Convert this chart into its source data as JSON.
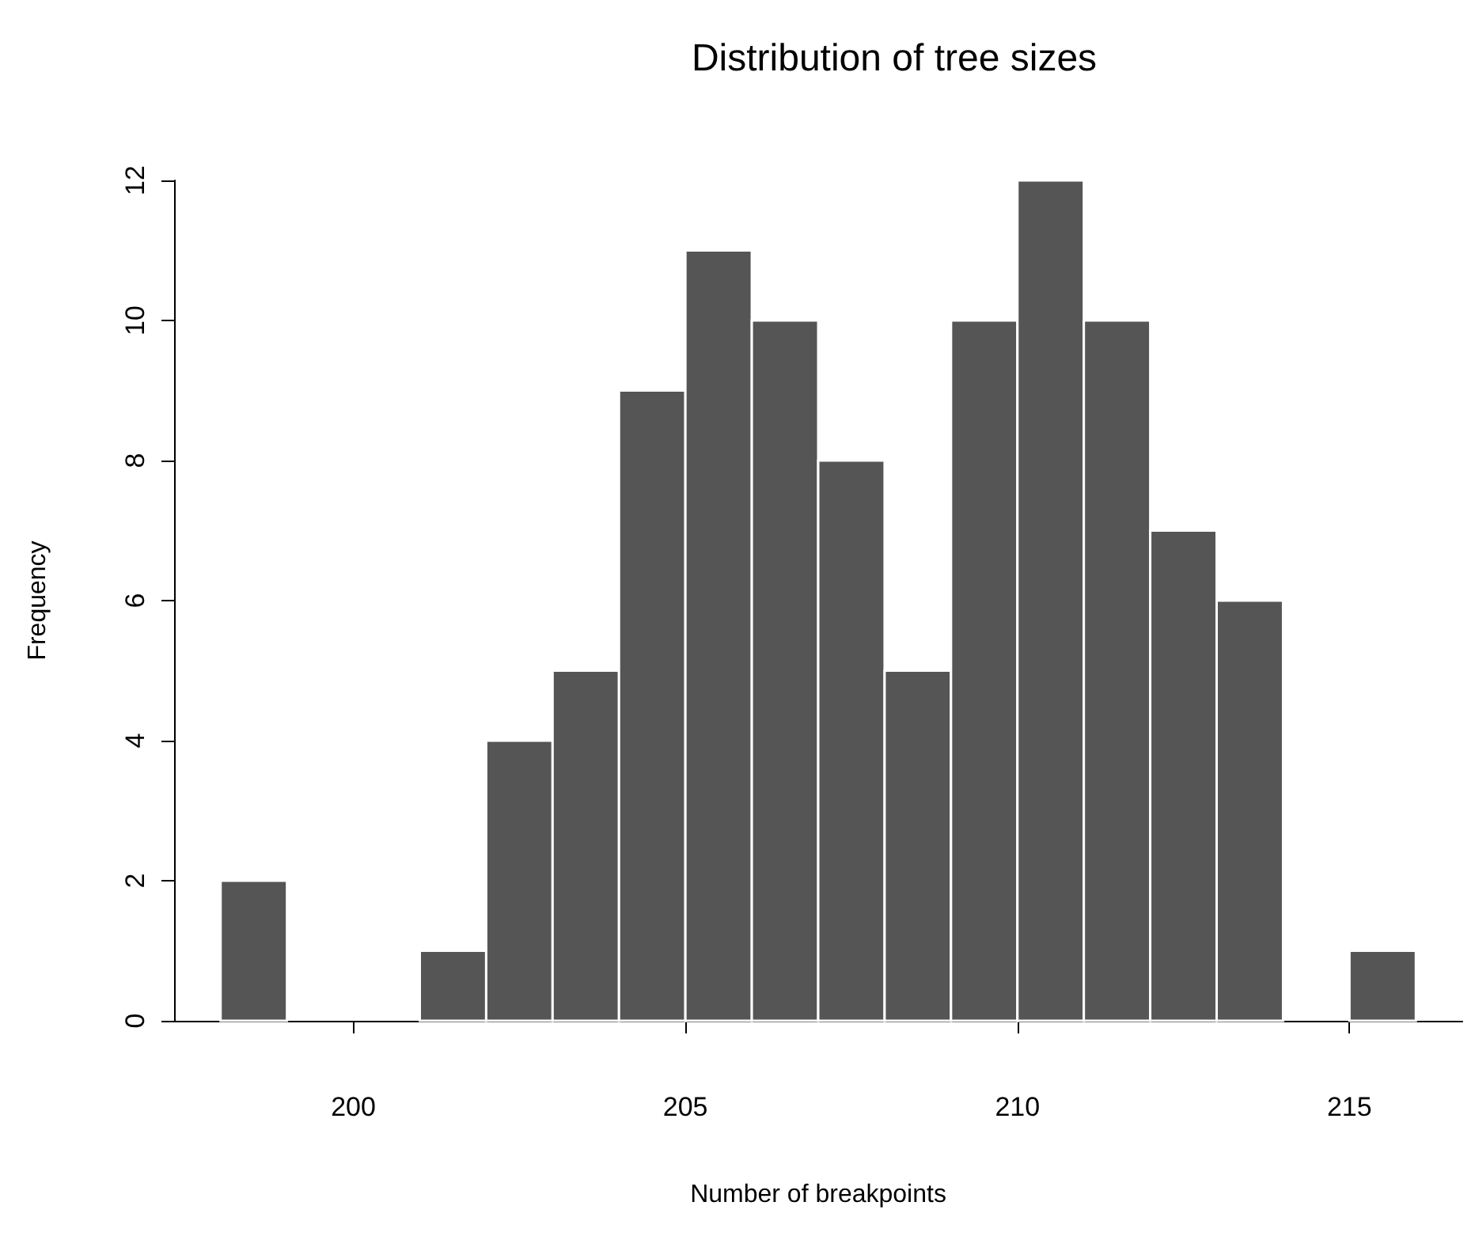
{
  "chart_data": {
    "type": "histogram",
    "title": "Distribution of tree sizes",
    "xlabel": "Number of breakpoints",
    "ylabel": "Frequency",
    "bins": [
      198,
      199,
      200,
      201,
      202,
      203,
      204,
      205,
      206,
      207,
      208,
      209,
      210,
      211,
      212,
      213,
      214,
      215,
      216
    ],
    "values": [
      2,
      0,
      0,
      1,
      4,
      5,
      9,
      11,
      10,
      8,
      5,
      10,
      12,
      10,
      7,
      6,
      0,
      1
    ],
    "color": "#555555",
    "xlim": [
      197.3,
      216.7
    ],
    "xticks": [
      200,
      205,
      210,
      215
    ],
    "ylim": [
      0,
      12
    ],
    "yticks": [
      0,
      2,
      4,
      6,
      8,
      10,
      12
    ],
    "grid": false,
    "legend": false
  }
}
